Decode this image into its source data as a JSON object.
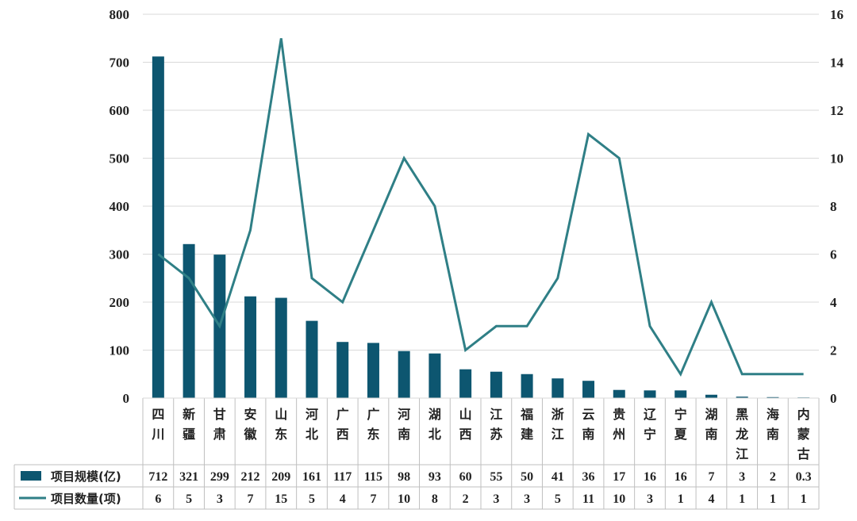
{
  "chart_data": {
    "type": "bar+line",
    "categories": [
      "四川",
      "新疆",
      "甘肃",
      "安徽",
      "山东",
      "河北",
      "广西",
      "广东",
      "河南",
      "湖北",
      "山西",
      "江苏",
      "福建",
      "浙江",
      "云南",
      "贵州",
      "辽宁",
      "宁夏",
      "湖南",
      "黑龙江",
      "海南",
      "内蒙古"
    ],
    "value_labels": [
      "712",
      "321",
      "299",
      "212",
      "209",
      "161",
      "117",
      "115",
      "98",
      "93",
      "60",
      "55",
      "50",
      "41",
      "36",
      "17",
      "16",
      "16",
      "7",
      "3",
      "2",
      "0.3"
    ],
    "count_labels": [
      "6",
      "5",
      "3",
      "7",
      "15",
      "5",
      "4",
      "7",
      "10",
      "8",
      "2",
      "3",
      "3",
      "5",
      "11",
      "10",
      "3",
      "1",
      "4",
      "1",
      "1",
      "1"
    ],
    "series": [
      {
        "name": "项目规模(亿)",
        "type": "bar",
        "axis": "left",
        "values": [
          712,
          321,
          299,
          212,
          209,
          161,
          117,
          115,
          98,
          93,
          60,
          55,
          50,
          41,
          36,
          17,
          16,
          16,
          7,
          3,
          2,
          0.3
        ]
      },
      {
        "name": "项目数量(项)",
        "type": "line",
        "axis": "right",
        "values": [
          6,
          5,
          3,
          7,
          15,
          5,
          4,
          7,
          10,
          8,
          2,
          3,
          3,
          5,
          11,
          10,
          3,
          1,
          4,
          1,
          1,
          1
        ]
      }
    ],
    "y_left": {
      "min": 0,
      "max": 800,
      "step": 100,
      "ticks": [
        "0",
        "100",
        "200",
        "300",
        "400",
        "500",
        "600",
        "700",
        "800"
      ]
    },
    "y_right": {
      "min": 0,
      "max": 16,
      "step": 2,
      "ticks": [
        "0",
        "2",
        "4",
        "6",
        "8",
        "10",
        "12",
        "14",
        "16"
      ]
    },
    "grid": true,
    "legend": "data-table",
    "colors": {
      "bar": "#0d5670",
      "line": "#2f7f86",
      "grid": "#d9d9d9",
      "table": "#bfbfbf"
    }
  }
}
